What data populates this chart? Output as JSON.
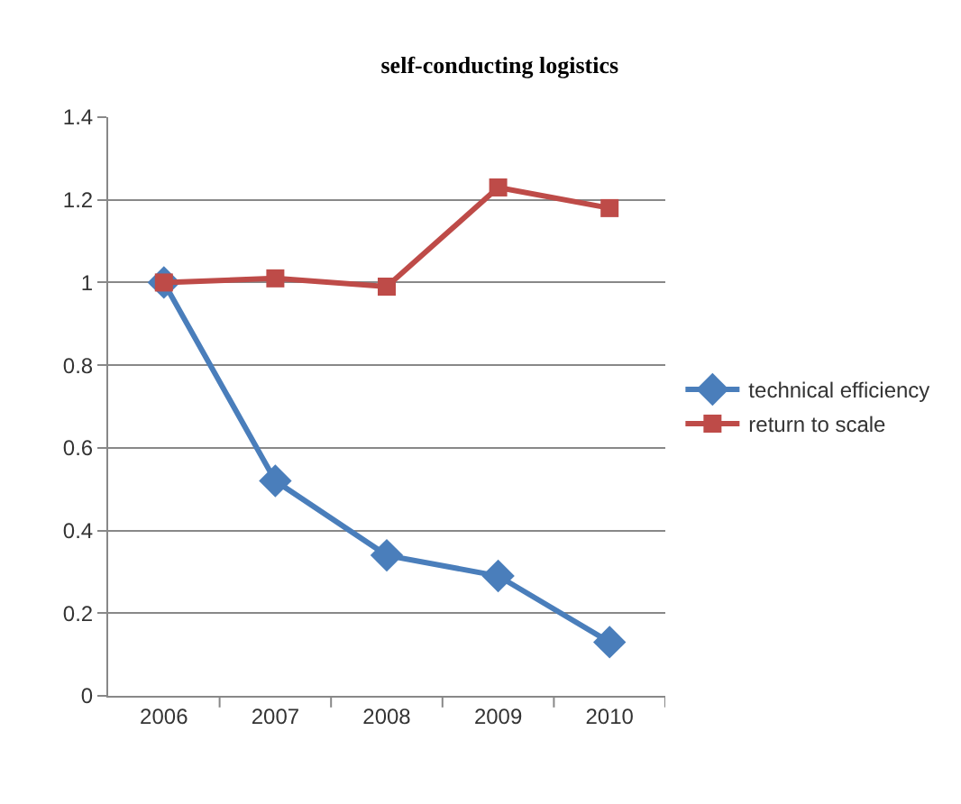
{
  "chart_data": {
    "type": "line",
    "title": "self-conducting logistics",
    "categories": [
      "2006",
      "2007",
      "2008",
      "2009",
      "2010"
    ],
    "series": [
      {
        "name": "technical efficiency",
        "color": "#4a7ebb",
        "marker": "diamond",
        "values": [
          1.0,
          0.52,
          0.34,
          0.29,
          0.13
        ]
      },
      {
        "name": "return to scale",
        "color": "#be4b48",
        "marker": "square",
        "values": [
          1.0,
          1.01,
          0.99,
          1.23,
          1.18
        ]
      }
    ],
    "ylim": [
      0,
      1.4
    ],
    "yticks": [
      0,
      0.2,
      0.4,
      0.6,
      0.8,
      1,
      1.2,
      1.4
    ],
    "grid": "y",
    "legend": "right"
  }
}
